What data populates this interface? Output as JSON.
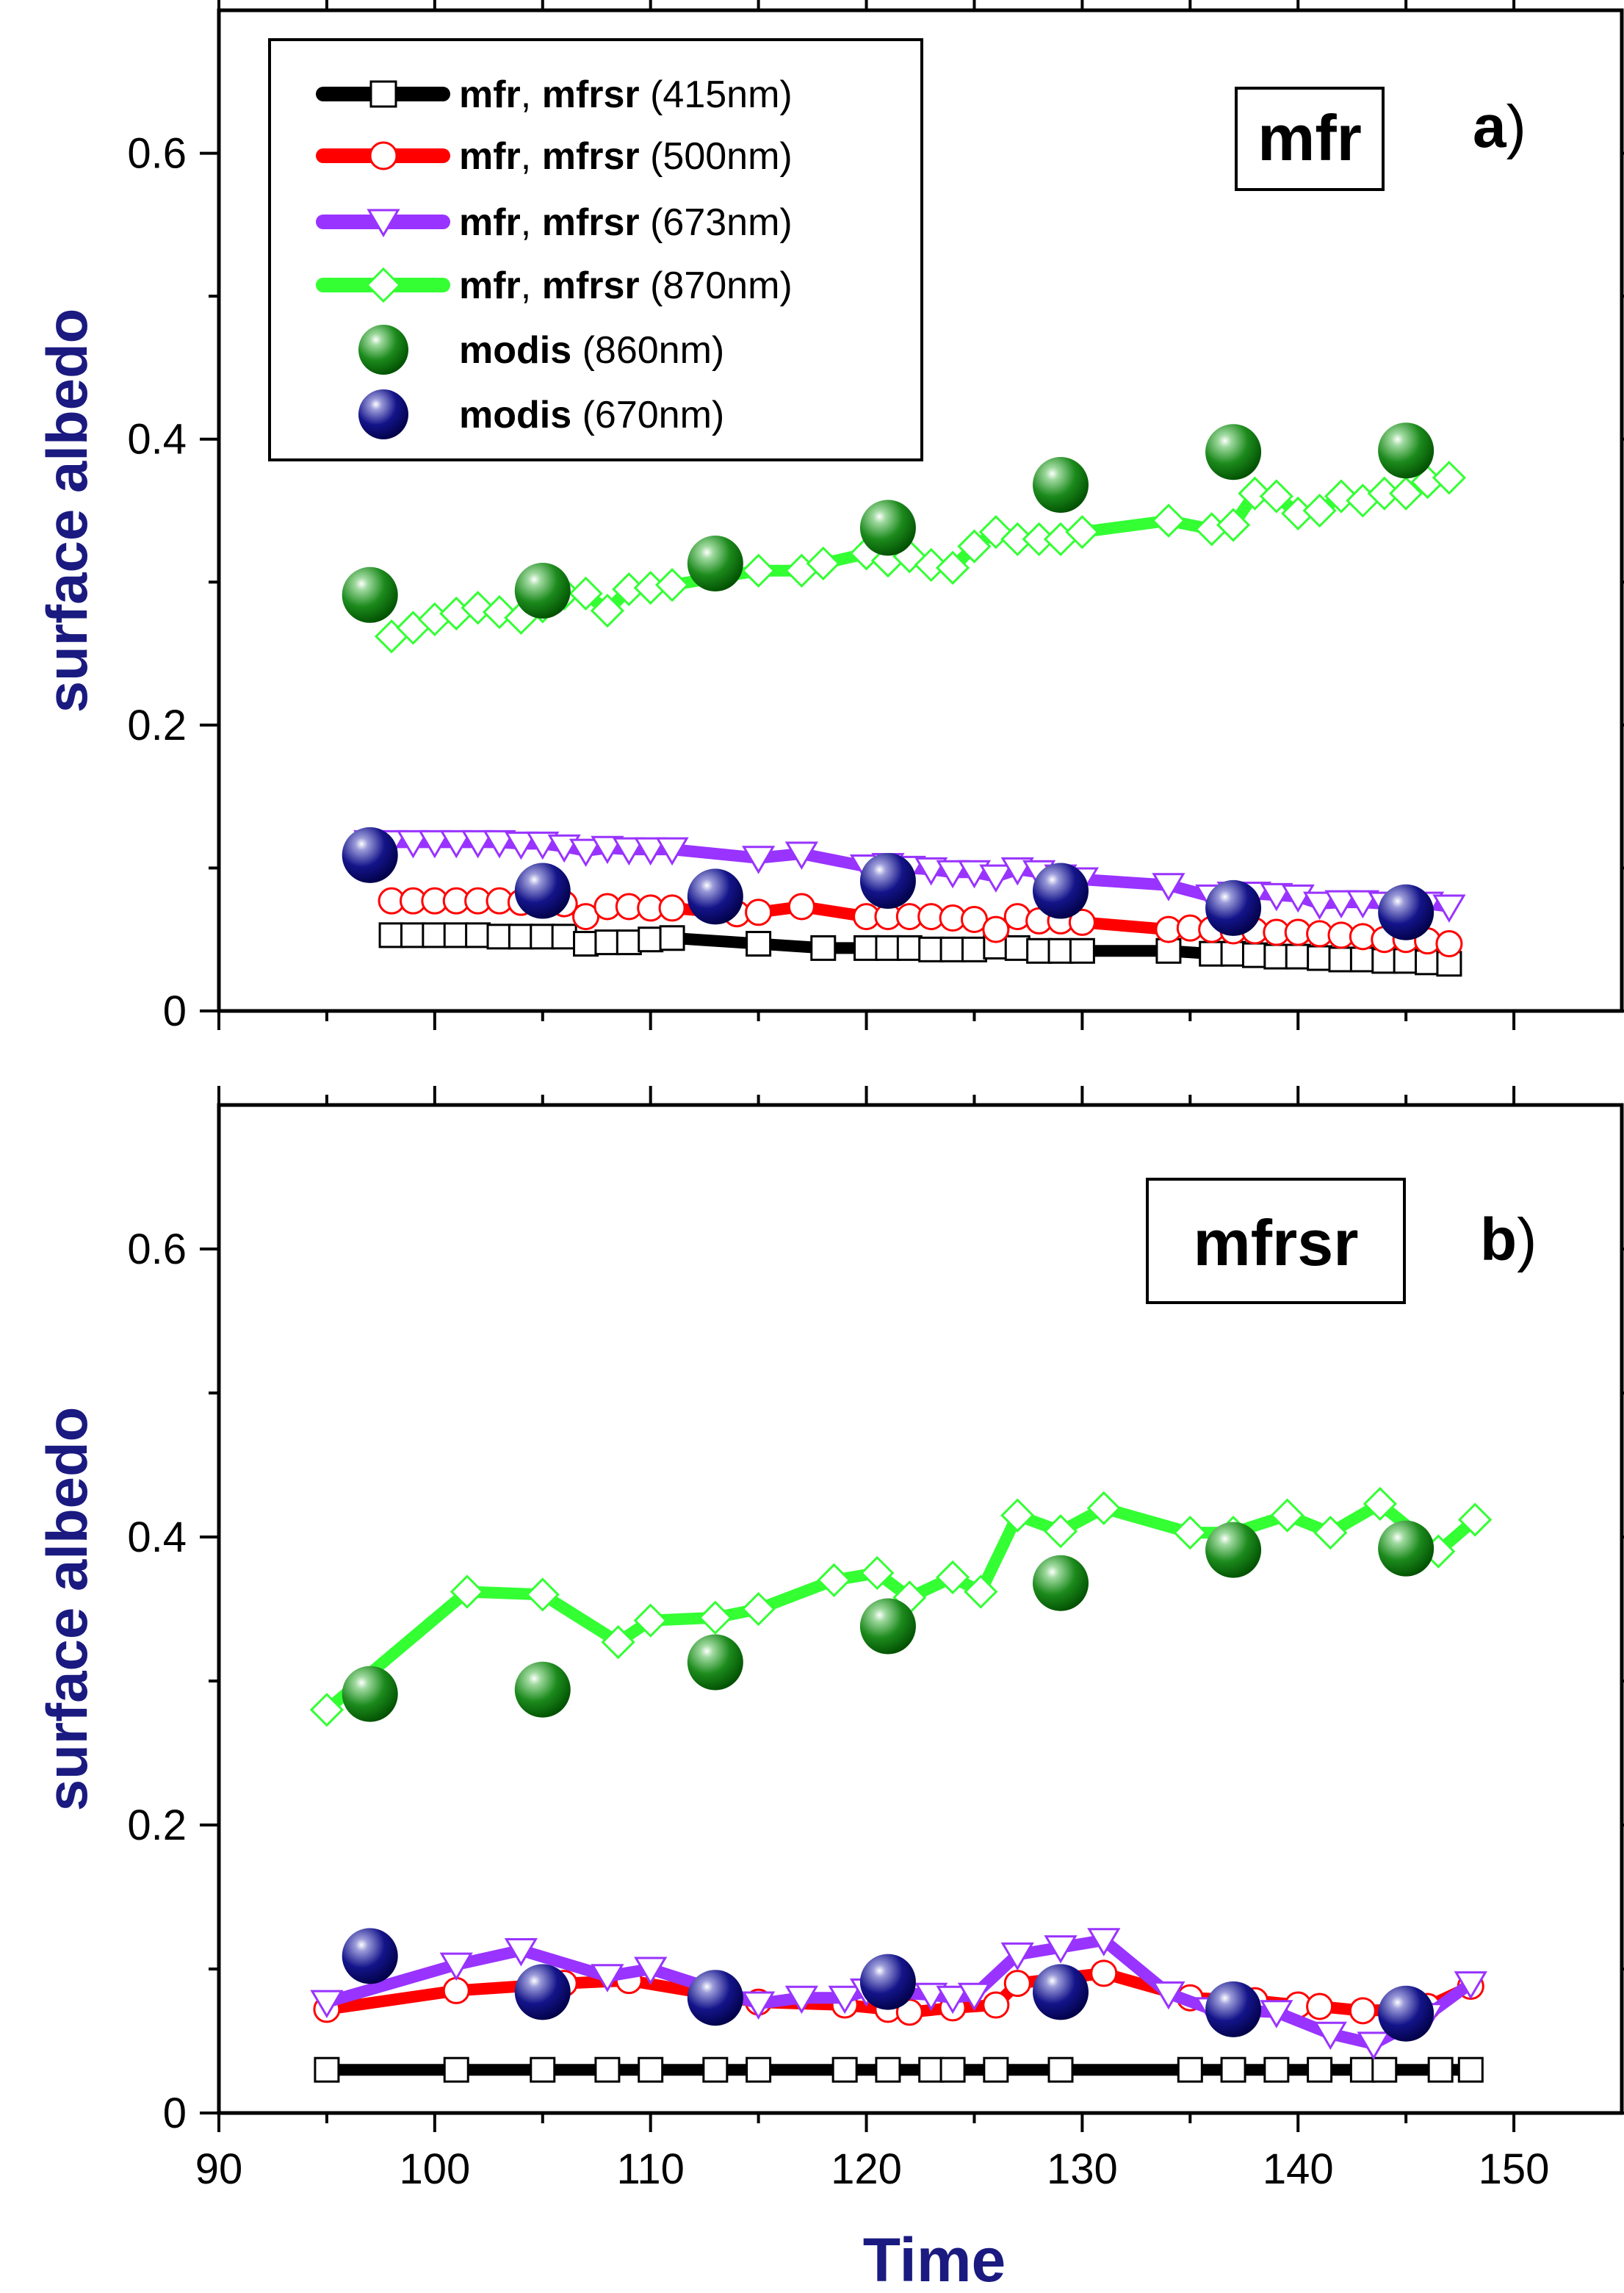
{
  "chart_data": [
    {
      "id": "panel-a",
      "type": "line",
      "tag": "mfr",
      "letter": "a",
      "letter_suffix": ")",
      "ylabel": "surface albedo",
      "xlim": [
        90,
        155
      ],
      "ylim": [
        0,
        0.7
      ],
      "xticks": [
        90,
        100,
        110,
        120,
        130,
        140,
        150
      ],
      "yticks": [
        0,
        0.2,
        0.4,
        0.6
      ],
      "ytick_labels": [
        "0",
        "0.2",
        "0.4",
        "0.6"
      ],
      "legend": {
        "position": "top-left",
        "entries": [
          {
            "bold": "mfr",
            "comma": ", ",
            "bold2": "mfrsr",
            "suffix": " (415nm)"
          },
          {
            "bold": "mfr",
            "comma": ", ",
            "bold2": "mfrsr",
            "suffix": " (500nm)"
          },
          {
            "bold": "mfr",
            "comma": ", ",
            "bold2": "mfrsr",
            "suffix": " (673nm)"
          },
          {
            "bold": "mfr",
            "comma": ", ",
            "bold2": "mfrsr",
            "suffix": " (870nm)"
          },
          {
            "bold": "modis",
            "comma": "",
            "bold2": "",
            "suffix": " (860nm)"
          },
          {
            "bold": "modis",
            "comma": "",
            "bold2": "",
            "suffix": " (670nm)"
          }
        ]
      },
      "series": [
        {
          "name": "mfr, mfrsr (415nm)",
          "color": "#000000",
          "marker": "square",
          "x": [
            98,
            99,
            100,
            101,
            102,
            103,
            104,
            105,
            106,
            107,
            108,
            109,
            110,
            111,
            115,
            118,
            120,
            121,
            122,
            123,
            124,
            125,
            126,
            127,
            128,
            129,
            130,
            134,
            136,
            137,
            138,
            139,
            140,
            141,
            142,
            143,
            144,
            145,
            146,
            147
          ],
          "y": [
            0.053,
            0.053,
            0.053,
            0.053,
            0.053,
            0.052,
            0.052,
            0.052,
            0.052,
            0.047,
            0.048,
            0.048,
            0.05,
            0.051,
            0.047,
            0.044,
            0.044,
            0.044,
            0.044,
            0.043,
            0.043,
            0.043,
            0.045,
            0.044,
            0.042,
            0.042,
            0.042,
            0.042,
            0.04,
            0.04,
            0.039,
            0.038,
            0.038,
            0.037,
            0.036,
            0.036,
            0.035,
            0.035,
            0.034,
            0.033
          ]
        },
        {
          "name": "mfr, mfrsr (500nm)",
          "color": "#ff0000",
          "marker": "circle",
          "x": [
            98,
            99,
            100,
            101,
            102,
            103,
            104,
            105,
            106,
            107,
            108,
            109,
            110,
            111,
            114,
            115,
            117,
            120,
            121,
            122,
            123,
            124,
            125,
            126,
            127,
            128,
            129,
            130,
            134,
            135,
            136,
            137,
            138,
            139,
            140,
            141,
            142,
            143,
            144,
            145,
            146,
            147
          ],
          "y": [
            0.077,
            0.077,
            0.077,
            0.077,
            0.077,
            0.077,
            0.076,
            0.076,
            0.075,
            0.066,
            0.073,
            0.073,
            0.072,
            0.072,
            0.068,
            0.069,
            0.073,
            0.066,
            0.066,
            0.066,
            0.066,
            0.065,
            0.064,
            0.057,
            0.066,
            0.063,
            0.063,
            0.062,
            0.057,
            0.058,
            0.057,
            0.056,
            0.056,
            0.055,
            0.055,
            0.054,
            0.053,
            0.052,
            0.05,
            0.05,
            0.049,
            0.047
          ]
        },
        {
          "name": "mfr, mfrsr (673nm)",
          "color": "#9933ff",
          "marker": "triangle-down",
          "x": [
            97,
            98,
            99,
            100,
            101,
            102,
            103,
            104,
            105,
            106,
            107,
            108,
            109,
            110,
            111,
            115,
            117,
            120,
            121,
            122,
            123,
            124,
            125,
            126,
            127,
            128,
            129,
            130,
            134,
            136,
            137,
            138,
            139,
            140,
            141,
            142,
            143,
            144,
            145,
            146,
            147
          ],
          "y": [
            0.118,
            0.118,
            0.118,
            0.118,
            0.118,
            0.118,
            0.118,
            0.117,
            0.117,
            0.115,
            0.112,
            0.114,
            0.113,
            0.113,
            0.113,
            0.107,
            0.11,
            0.101,
            0.102,
            0.1,
            0.099,
            0.097,
            0.097,
            0.094,
            0.099,
            0.097,
            0.094,
            0.092,
            0.088,
            0.08,
            0.082,
            0.082,
            0.081,
            0.08,
            0.075,
            0.076,
            0.076,
            0.075,
            0.076,
            0.075,
            0.073
          ]
        },
        {
          "name": "mfr, mfrsr (870nm)",
          "color": "#33ff33",
          "marker": "diamond",
          "x": [
            98,
            99,
            100,
            101,
            102,
            103,
            104,
            105,
            106,
            107,
            108,
            109,
            110,
            111,
            115,
            117,
            118,
            120,
            121,
            122,
            123,
            124,
            125,
            126,
            127,
            128,
            129,
            130,
            134,
            136,
            137,
            138,
            139,
            140,
            141,
            142,
            143,
            144,
            145,
            146,
            147
          ],
          "y": [
            0.262,
            0.268,
            0.274,
            0.278,
            0.282,
            0.279,
            0.275,
            0.283,
            0.292,
            0.292,
            0.28,
            0.295,
            0.296,
            0.298,
            0.308,
            0.308,
            0.313,
            0.32,
            0.315,
            0.318,
            0.312,
            0.31,
            0.325,
            0.335,
            0.33,
            0.33,
            0.33,
            0.335,
            0.343,
            0.337,
            0.34,
            0.362,
            0.36,
            0.348,
            0.35,
            0.36,
            0.357,
            0.362,
            0.362,
            0.37,
            0.373
          ]
        },
        {
          "name": "modis (860nm)",
          "color": "#008000",
          "marker": "sphere",
          "x": [
            97,
            105,
            113,
            121,
            129,
            137,
            145
          ],
          "y": [
            0.291,
            0.294,
            0.313,
            0.338,
            0.368,
            0.391,
            0.392
          ]
        },
        {
          "name": "modis (670nm)",
          "color": "#00007a",
          "marker": "sphere",
          "x": [
            97,
            105,
            113,
            121,
            129,
            137,
            145
          ],
          "y": [
            0.109,
            0.084,
            0.08,
            0.091,
            0.084,
            0.072,
            0.069
          ]
        }
      ]
    },
    {
      "id": "panel-b",
      "type": "line",
      "tag": "mfrsr",
      "letter": "b",
      "letter_suffix": ")",
      "ylabel": "surface albedo",
      "xlabel": "Time",
      "xlim": [
        90,
        155
      ],
      "ylim": [
        0,
        0.7
      ],
      "xticks": [
        90,
        100,
        110,
        120,
        130,
        140,
        150
      ],
      "xtick_labels": [
        "90",
        "100",
        "110",
        "120",
        "130",
        "140",
        "150"
      ],
      "yticks": [
        0,
        0.2,
        0.4,
        0.6
      ],
      "ytick_labels": [
        "0",
        "0.2",
        "0.4",
        "0.6"
      ],
      "series": [
        {
          "name": "mfr, mfrsr (415nm)",
          "color": "#000000",
          "marker": "square",
          "x": [
            95,
            101,
            105,
            108,
            110,
            113,
            115,
            119,
            121,
            123,
            124,
            126,
            129,
            135,
            137,
            139,
            141,
            143,
            144,
            146.6,
            148
          ],
          "y": [
            0.03,
            0.03,
            0.03,
            0.03,
            0.03,
            0.03,
            0.03,
            0.03,
            0.03,
            0.03,
            0.03,
            0.03,
            0.03,
            0.03,
            0.03,
            0.03,
            0.03,
            0.03,
            0.03,
            0.03,
            0.03
          ]
        },
        {
          "name": "mfr, mfrsr (500nm)",
          "color": "#ff0000",
          "marker": "circle",
          "x": [
            95,
            101,
            106,
            109,
            115,
            119,
            121,
            122,
            124,
            126,
            127,
            131,
            135,
            138,
            140,
            141,
            143,
            145,
            146,
            148
          ],
          "y": [
            0.072,
            0.085,
            0.09,
            0.092,
            0.077,
            0.075,
            0.072,
            0.07,
            0.073,
            0.075,
            0.09,
            0.097,
            0.08,
            0.078,
            0.075,
            0.074,
            0.071,
            0.072,
            0.074,
            0.088
          ]
        },
        {
          "name": "mfr, mfrsr (673nm)",
          "color": "#9933ff",
          "marker": "triangle-down",
          "x": [
            95,
            101,
            104,
            108,
            110,
            115,
            117,
            119,
            120,
            123,
            124,
            125,
            127,
            129,
            131,
            134,
            136,
            139,
            141.5,
            143.5,
            146,
            148
          ],
          "y": [
            0.077,
            0.103,
            0.113,
            0.095,
            0.1,
            0.076,
            0.08,
            0.08,
            0.085,
            0.082,
            0.08,
            0.082,
            0.11,
            0.115,
            0.12,
            0.083,
            0.072,
            0.07,
            0.055,
            0.048,
            0.068,
            0.09
          ]
        },
        {
          "name": "mfr, mfrsr (870nm)",
          "color": "#33ff33",
          "marker": "diamond",
          "x": [
            95,
            101.5,
            105,
            108.5,
            110,
            113,
            115,
            118.5,
            120.5,
            122,
            124,
            125.3,
            127,
            129,
            131,
            135,
            137,
            139.5,
            141.5,
            143.8,
            146.5,
            148.2
          ],
          "y": [
            0.28,
            0.362,
            0.36,
            0.327,
            0.342,
            0.344,
            0.35,
            0.37,
            0.375,
            0.358,
            0.372,
            0.362,
            0.415,
            0.404,
            0.42,
            0.403,
            0.403,
            0.415,
            0.403,
            0.423,
            0.39,
            0.412
          ]
        },
        {
          "name": "modis (860nm)",
          "color": "#008000",
          "marker": "sphere",
          "x": [
            97,
            105,
            113,
            121,
            129,
            137,
            145
          ],
          "y": [
            0.291,
            0.294,
            0.313,
            0.338,
            0.368,
            0.391,
            0.392
          ]
        },
        {
          "name": "modis (670nm)",
          "color": "#00007a",
          "marker": "sphere",
          "x": [
            97,
            105,
            113,
            121,
            129,
            137,
            145
          ],
          "y": [
            0.109,
            0.084,
            0.08,
            0.091,
            0.084,
            0.072,
            0.069
          ]
        }
      ]
    }
  ]
}
